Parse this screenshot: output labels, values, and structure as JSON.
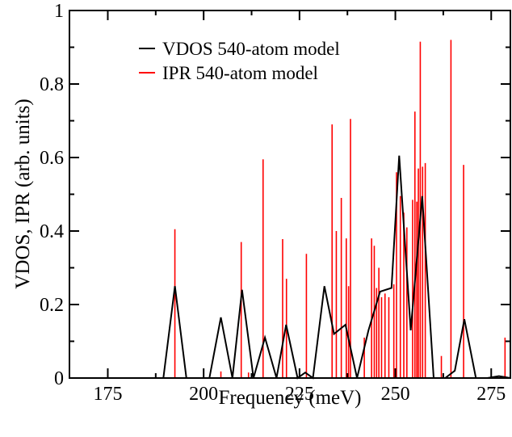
{
  "chart_data": {
    "type": "line",
    "title": "",
    "xlabel": "Frequency (meV)",
    "ylabel": "VDOS, IPR (arb. units)",
    "xlim": [
      165,
      280
    ],
    "ylim": [
      0,
      1
    ],
    "x_ticks": [
      175,
      200,
      225,
      250,
      275
    ],
    "x_tick_labels": [
      "175",
      "200",
      "225",
      "250",
      "275"
    ],
    "y_ticks": [
      0,
      0.2,
      0.4,
      0.6,
      0.8,
      1
    ],
    "y_tick_labels": [
      "0",
      "0.2",
      "0.4",
      "0.6",
      "0.8",
      "1"
    ],
    "grid": false,
    "legend_position": "top-left",
    "series": [
      {
        "name": "VDOS 540-atom model",
        "color": "#000000",
        "kind": "line",
        "x": [
          165,
          189.5,
          192.5,
          195.5,
          201.5,
          204.5,
          207.5,
          210,
          213,
          216,
          219,
          221.5,
          224.5,
          226.5,
          228.5,
          231.5,
          234,
          237,
          240,
          243,
          246,
          249,
          251,
          254,
          257,
          260,
          263,
          265.5,
          268,
          271,
          274,
          277,
          280
        ],
        "y": [
          0,
          0,
          0.25,
          0,
          0,
          0.165,
          0,
          0.24,
          0,
          0.11,
          0,
          0.145,
          0,
          0.015,
          0,
          0.25,
          0.12,
          0.145,
          0,
          0.13,
          0.235,
          0.245,
          0.605,
          0.13,
          0.495,
          0,
          0,
          0.02,
          0.16,
          0,
          0,
          0.005,
          0
        ]
      },
      {
        "name": "IPR 540-atom model",
        "color": "#ff0000",
        "kind": "stick",
        "x": [
          192.5,
          204.5,
          209.8,
          211.7,
          215.5,
          220.6,
          221.6,
          226.8,
          233.5,
          234.6,
          235.9,
          237.2,
          237.8,
          238.3,
          241.9,
          243.8,
          244.5,
          245.1,
          245.7,
          246.4,
          247.3,
          248.3,
          249.6,
          250.3,
          251.3,
          252.2,
          253,
          254.5,
          255.1,
          255.6,
          256,
          256.5,
          257.1,
          257.8,
          262,
          264.5,
          267.8,
          278.6
        ],
        "y": [
          0.405,
          0.018,
          0.37,
          0.015,
          0.595,
          0.378,
          0.27,
          0.338,
          0.69,
          0.4,
          0.49,
          0.38,
          0.25,
          0.705,
          0.11,
          0.38,
          0.36,
          0.245,
          0.3,
          0.22,
          0.23,
          0.22,
          0.255,
          0.56,
          0.495,
          0.45,
          0.41,
          0.485,
          0.725,
          0.48,
          0.57,
          0.915,
          0.575,
          0.585,
          0.06,
          0.92,
          0.58,
          0.11
        ]
      }
    ]
  }
}
